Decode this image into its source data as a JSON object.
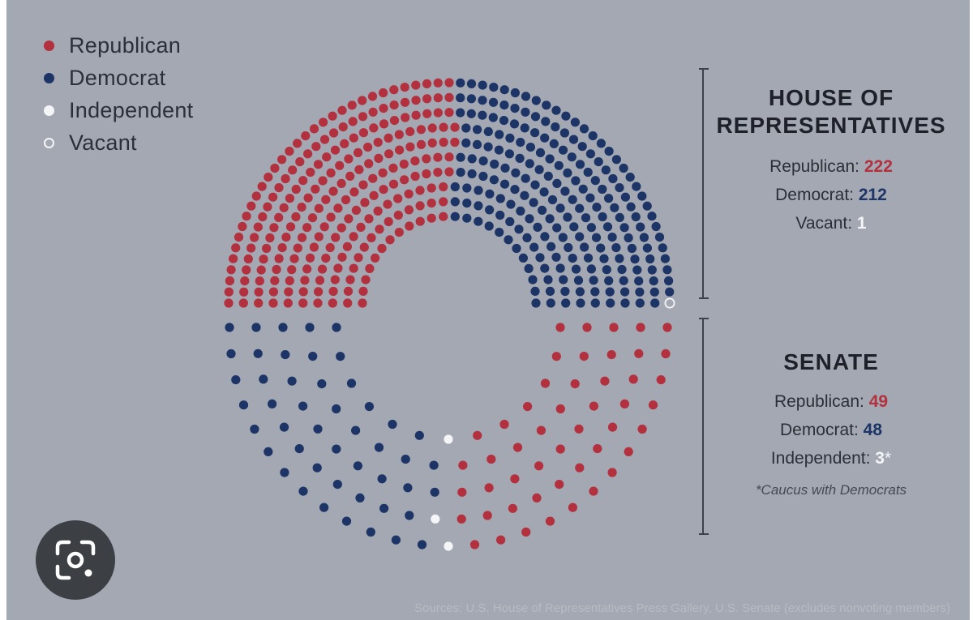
{
  "legend": {
    "items": [
      {
        "label": "Republican",
        "color": "#b3303e",
        "style": "filled"
      },
      {
        "label": "Democrat",
        "color": "#1c3466",
        "style": "filled"
      },
      {
        "label": "Independent",
        "color": "#f4f5f7",
        "style": "filled"
      },
      {
        "label": "Vacant",
        "color": "#f4f5f7",
        "style": "hollow"
      }
    ]
  },
  "house": {
    "title_line1": "HOUSE OF",
    "title_line2": "REPRESENTATIVES",
    "stats": [
      {
        "label": "Republican:",
        "value": "222",
        "party": "rep"
      },
      {
        "label": "Democrat:",
        "value": "212",
        "party": "dem"
      },
      {
        "label": "Vacant:",
        "value": "1",
        "party": "ind"
      }
    ]
  },
  "senate": {
    "title": "SENATE",
    "stats": [
      {
        "label": "Republican:",
        "value": "49",
        "party": "rep",
        "suffix": ""
      },
      {
        "label": "Democrat:",
        "value": "48",
        "party": "dem",
        "suffix": ""
      },
      {
        "label": "Independent:",
        "value": "3",
        "party": "ind",
        "suffix": "*"
      }
    ],
    "note": "*Caucus with Democrats"
  },
  "footer": {
    "sources": "Sources: U.S. House of Representatives Press Gallery, U.S. Senate (excludes nonvoting members)"
  },
  "colors": {
    "republican": "#b3303e",
    "democrat": "#1c3466",
    "independent": "#f4f5f7",
    "background": "#a3a8b2"
  },
  "icons": {
    "lens": "google-lens-icon"
  },
  "chart_data": [
    {
      "type": "parliament-hemicycle",
      "title": "HOUSE OF REPRESENTATIVES",
      "orientation": "upper-half",
      "rows": 10,
      "seats": [
        {
          "party": "Republican",
          "count": 222
        },
        {
          "party": "Democrat",
          "count": 212
        },
        {
          "party": "Vacant",
          "count": 1
        }
      ],
      "total": 435
    },
    {
      "type": "parliament-hemicycle",
      "title": "SENATE",
      "orientation": "lower-half",
      "rows": 5,
      "seats": [
        {
          "party": "Democrat",
          "count": 48
        },
        {
          "party": "Independent",
          "count": 3
        },
        {
          "party": "Republican",
          "count": 49
        }
      ],
      "total": 100
    }
  ]
}
